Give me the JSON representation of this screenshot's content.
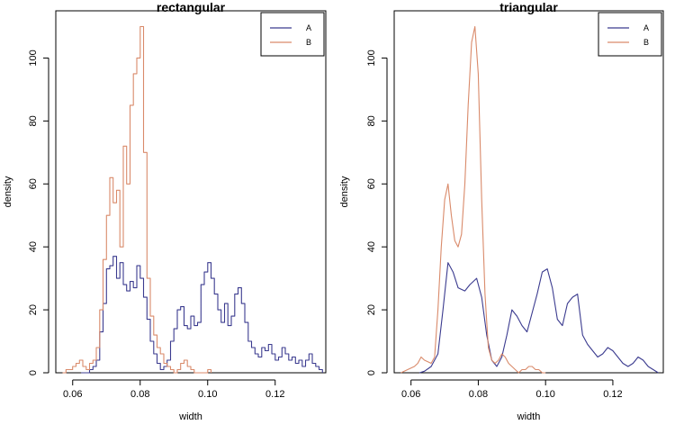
{
  "chart_data": [
    {
      "type": "line",
      "title": "rectangular",
      "xlabel": "width",
      "ylabel": "density",
      "xlim": [
        0.055,
        0.135
      ],
      "ylim": [
        0,
        115
      ],
      "xticks": [
        0.06,
        0.08,
        0.1,
        0.12
      ],
      "xtick_labels": [
        "0.06",
        "0.08",
        "0.10",
        "0.12"
      ],
      "yticks": [
        0,
        20,
        40,
        60,
        80,
        100
      ],
      "ytick_labels": [
        "0",
        "20",
        "40",
        "60",
        "80",
        "100"
      ],
      "legend_position": "top-right",
      "step": true,
      "series": [
        {
          "name": "A",
          "color": "#3b3b8f",
          "x": [
            0.0625,
            0.064,
            0.065,
            0.066,
            0.067,
            0.068,
            0.069,
            0.07,
            0.071,
            0.072,
            0.073,
            0.074,
            0.075,
            0.076,
            0.077,
            0.078,
            0.079,
            0.08,
            0.081,
            0.082,
            0.083,
            0.084,
            0.085,
            0.086,
            0.087,
            0.088,
            0.089,
            0.09,
            0.091,
            0.092,
            0.093,
            0.094,
            0.095,
            0.096,
            0.097,
            0.098,
            0.099,
            0.1,
            0.101,
            0.102,
            0.103,
            0.104,
            0.105,
            0.106,
            0.107,
            0.108,
            0.109,
            0.11,
            0.111,
            0.112,
            0.113,
            0.114,
            0.115,
            0.116,
            0.117,
            0.118,
            0.119,
            0.12,
            0.121,
            0.122,
            0.123,
            0.124,
            0.125,
            0.126,
            0.127,
            0.128,
            0.129,
            0.13,
            0.131,
            0.132,
            0.133,
            0.134
          ],
          "y": [
            0,
            0,
            1,
            2,
            4,
            13,
            22,
            33,
            34,
            37,
            30,
            35,
            28,
            26,
            29,
            27,
            34,
            30,
            24,
            17,
            10,
            6,
            3,
            1,
            2,
            4,
            10,
            14,
            20,
            21,
            15,
            14,
            18,
            15,
            16,
            28,
            32,
            35,
            30,
            25,
            20,
            16,
            22,
            15,
            18,
            25,
            27,
            22,
            16,
            10,
            8,
            6,
            5,
            8,
            7,
            9,
            6,
            4,
            5,
            8,
            6,
            4,
            5,
            3,
            4,
            2,
            4,
            6,
            3,
            2,
            1,
            0
          ]
        },
        {
          "name": "B",
          "color": "#d98a6a",
          "x": [
            0.057,
            0.058,
            0.059,
            0.06,
            0.061,
            0.062,
            0.063,
            0.064,
            0.065,
            0.066,
            0.067,
            0.068,
            0.069,
            0.07,
            0.071,
            0.072,
            0.073,
            0.074,
            0.075,
            0.076,
            0.077,
            0.078,
            0.079,
            0.08,
            0.081,
            0.082,
            0.083,
            0.084,
            0.085,
            0.086,
            0.087,
            0.088,
            0.089,
            0.09,
            0.091,
            0.092,
            0.093,
            0.094,
            0.095,
            0.096,
            0.097,
            0.098,
            0.099,
            0.1,
            0.101
          ],
          "y": [
            0,
            1,
            1,
            2,
            3,
            4,
            2,
            1,
            3,
            4,
            8,
            20,
            36,
            50,
            62,
            54,
            58,
            40,
            72,
            60,
            85,
            95,
            100,
            110,
            70,
            30,
            18,
            12,
            8,
            6,
            3,
            2,
            1,
            0,
            1,
            3,
            4,
            2,
            1,
            0,
            0,
            0,
            0,
            1,
            0
          ]
        }
      ]
    },
    {
      "type": "line",
      "title": "triangular",
      "xlabel": "width",
      "ylabel": "density",
      "xlim": [
        0.055,
        0.135
      ],
      "ylim": [
        0,
        115
      ],
      "xticks": [
        0.06,
        0.08,
        0.1,
        0.12
      ],
      "xtick_labels": [
        "0.06",
        "0.08",
        "0.10",
        "0.12"
      ],
      "yticks": [
        0,
        20,
        40,
        60,
        80,
        100
      ],
      "ytick_labels": [
        "0",
        "20",
        "40",
        "60",
        "80",
        "100"
      ],
      "legend_position": "top-right",
      "step": false,
      "series": [
        {
          "name": "A",
          "color": "#3b3b8f",
          "x": [
            0.0625,
            0.064,
            0.066,
            0.068,
            0.0695,
            0.071,
            0.0725,
            0.074,
            0.076,
            0.0775,
            0.0795,
            0.081,
            0.0825,
            0.084,
            0.0855,
            0.087,
            0.0885,
            0.09,
            0.0915,
            0.093,
            0.0945,
            0.096,
            0.0975,
            0.099,
            0.1005,
            0.102,
            0.1035,
            0.105,
            0.1065,
            0.108,
            0.1095,
            0.111,
            0.1125,
            0.114,
            0.1155,
            0.117,
            0.1185,
            0.12,
            0.1215,
            0.123,
            0.1245,
            0.126,
            0.1275,
            0.129,
            0.1305,
            0.132,
            0.1335
          ],
          "y": [
            0,
            0.5,
            2,
            6,
            20,
            35,
            32,
            27,
            26,
            28,
            30,
            24,
            12,
            4,
            2,
            5,
            12,
            20,
            18,
            15,
            13,
            19,
            25,
            32,
            33,
            27,
            17,
            15,
            22,
            24,
            25,
            12,
            9,
            7,
            5,
            6,
            8,
            7,
            5,
            3,
            2,
            3,
            5,
            4,
            2,
            1,
            0
          ]
        },
        {
          "name": "B",
          "color": "#d98a6a",
          "x": [
            0.057,
            0.059,
            0.061,
            0.062,
            0.063,
            0.064,
            0.066,
            0.067,
            0.068,
            0.069,
            0.07,
            0.071,
            0.072,
            0.073,
            0.074,
            0.075,
            0.076,
            0.077,
            0.078,
            0.079,
            0.08,
            0.081,
            0.082,
            0.083,
            0.084,
            0.085,
            0.086,
            0.087,
            0.088,
            0.089,
            0.09,
            0.091,
            0.092,
            0.093,
            0.094,
            0.095,
            0.096,
            0.097,
            0.098,
            0.099,
            0.1
          ],
          "y": [
            0,
            1,
            2,
            3,
            5,
            4,
            3,
            5,
            20,
            40,
            55,
            60,
            50,
            42,
            40,
            44,
            60,
            85,
            105,
            110,
            95,
            55,
            25,
            8,
            4,
            3,
            4,
            6,
            5,
            3,
            2,
            1,
            0,
            1,
            1,
            2,
            2,
            1,
            1,
            0,
            0
          ]
        }
      ]
    }
  ]
}
